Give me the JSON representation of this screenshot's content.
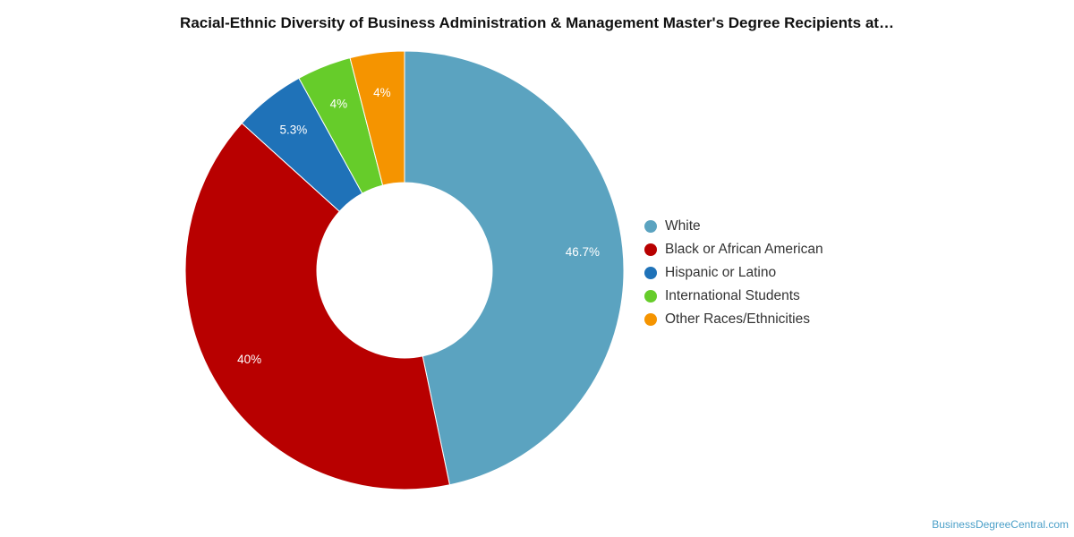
{
  "chart_data": {
    "type": "pie",
    "title": "Racial-Ethnic Diversity of Business Administration & Management Master's Degree Recipients at…",
    "labels": [
      "White",
      "Black or African American",
      "Hispanic or Latino",
      "International Students",
      "Other Races/Ethnicities"
    ],
    "values": [
      46.7,
      40,
      5.3,
      4,
      4
    ],
    "value_labels": [
      "46.7%",
      "40%",
      "5.3%",
      "4%",
      "4%"
    ],
    "colors": [
      "#5ba3c0",
      "#b80000",
      "#1f72b8",
      "#66cc2a",
      "#f59400"
    ],
    "donut": true,
    "legend_position": "right"
  },
  "watermark": "BusinessDegreeCentral.com"
}
